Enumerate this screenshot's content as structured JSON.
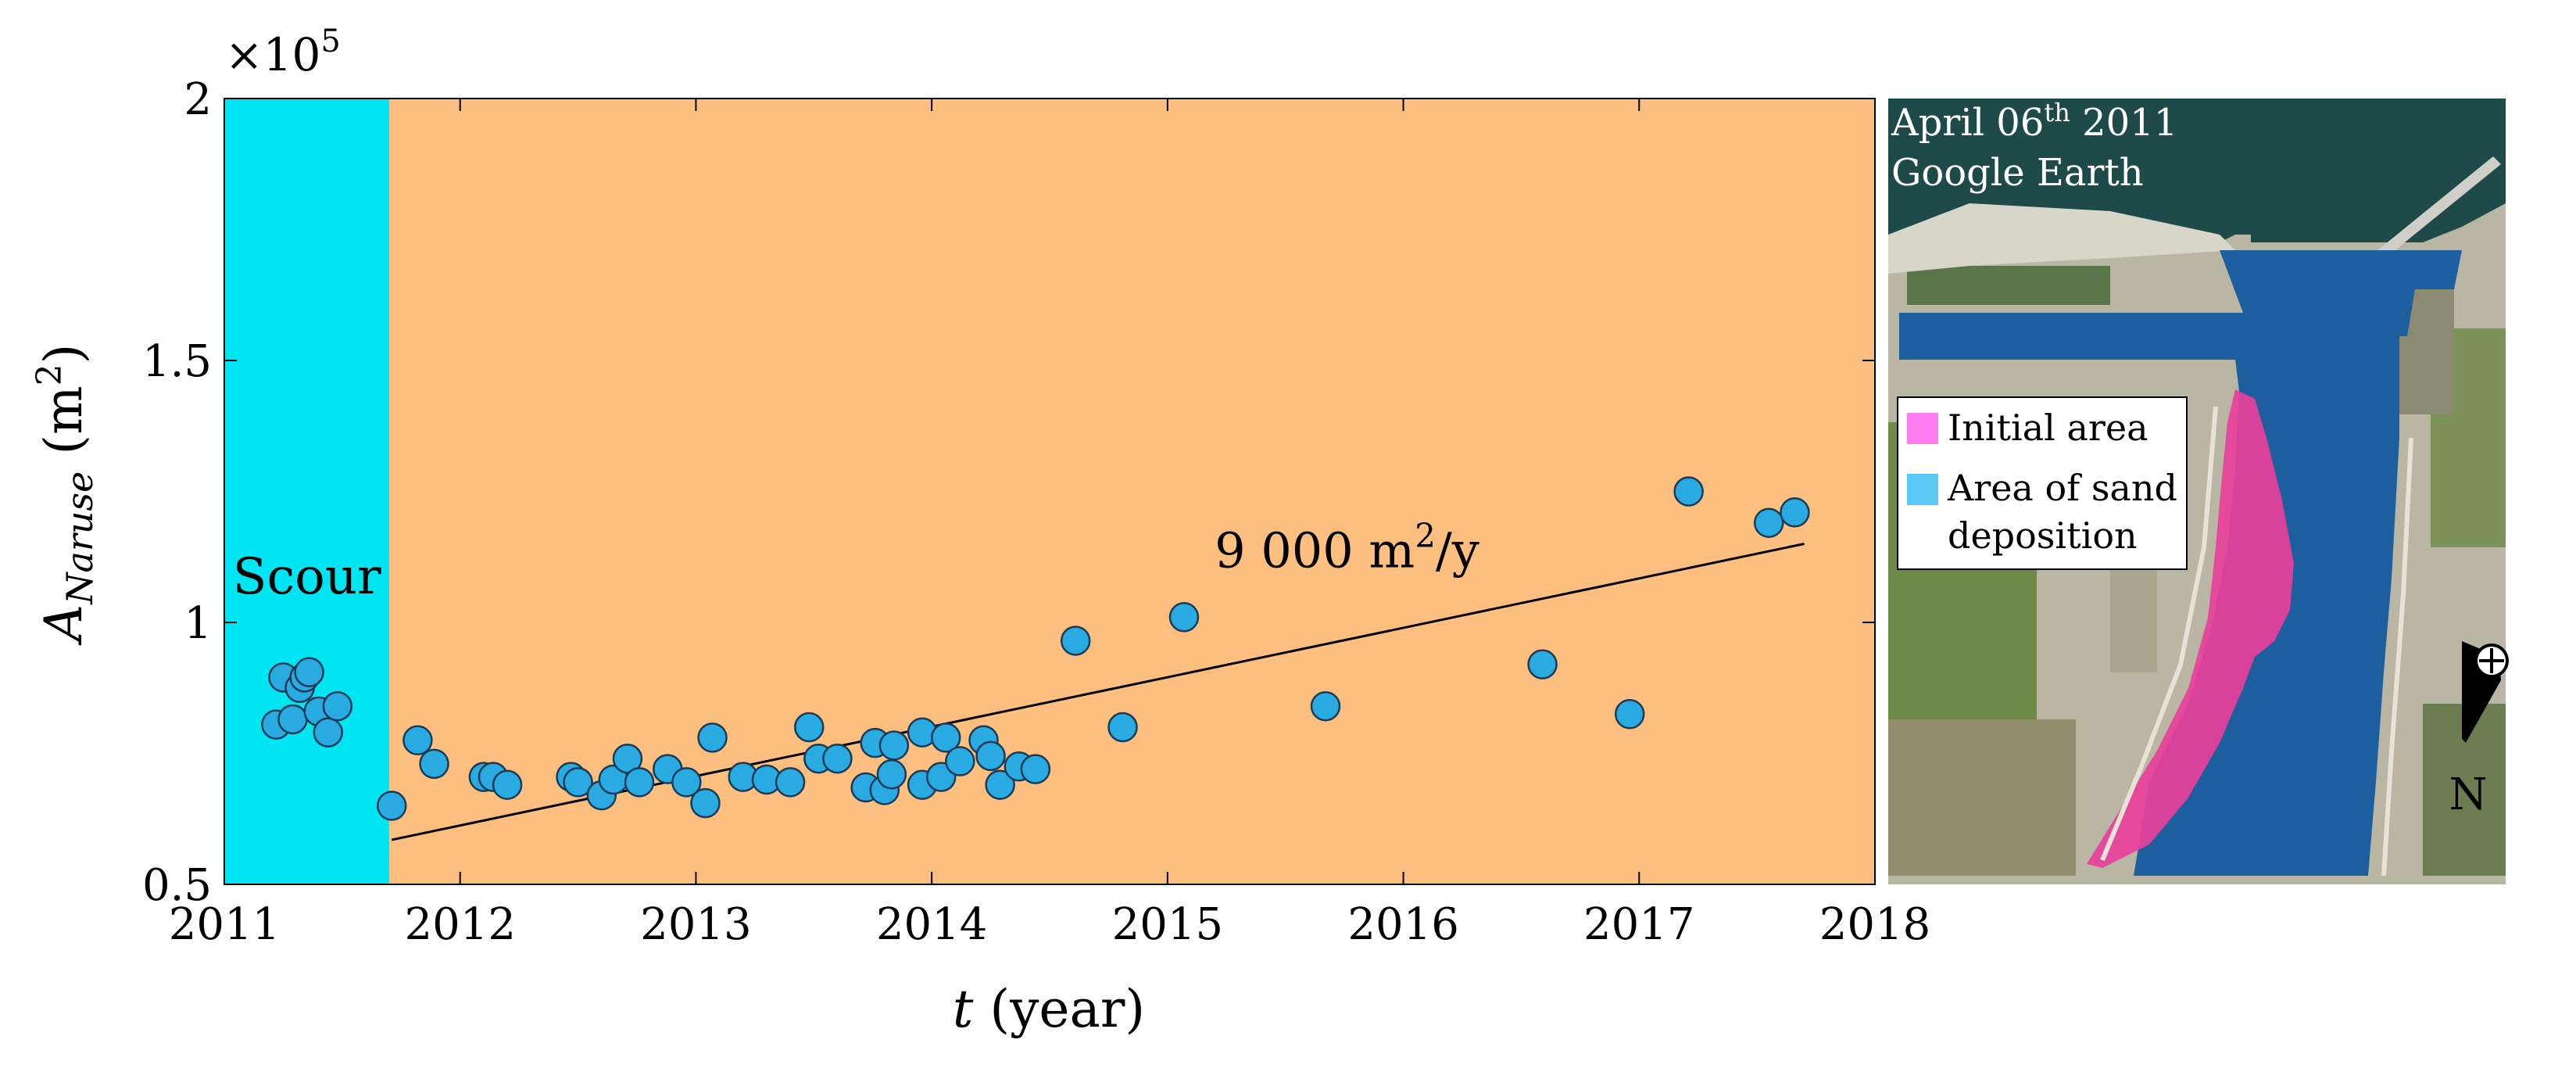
{
  "chart_data": {
    "type": "scatter",
    "title": "",
    "xlabel": "t",
    "xlabel_unit": "(year)",
    "ylabel": "A",
    "ylabel_sub": "Naruse",
    "ylabel_unit": "(m",
    "ylabel_unit_sup": "2",
    "ylabel_unit_close": ")",
    "y_multiplier": "×10",
    "y_multiplier_exp": "5",
    "xlim": [
      2011,
      2018
    ],
    "ylim": [
      0.5,
      2.0
    ],
    "x_ticks": [
      2011,
      2012,
      2013,
      2014,
      2015,
      2016,
      2017,
      2018
    ],
    "x_tick_labels": [
      "2011",
      "2012",
      "2013",
      "2014",
      "2015",
      "2016",
      "2017",
      "2018"
    ],
    "y_ticks": [
      0.5,
      1.0,
      1.5,
      2.0
    ],
    "y_tick_labels": [
      "0.5",
      "1",
      "1.5",
      "2"
    ],
    "regions": [
      {
        "name": "scour",
        "label": "Scour",
        "x_start": 2011.0,
        "x_end": 2011.7,
        "color": "#00E5F2"
      },
      {
        "name": "deposition",
        "label": "",
        "x_start": 2011.7,
        "x_end": 2018.0,
        "color": "#FDBF7F"
      }
    ],
    "series": [
      {
        "name": "observations",
        "marker_color": "#29ABE2",
        "points": [
          [
            2011.22,
            0.805
          ],
          [
            2011.25,
            0.895
          ],
          [
            2011.29,
            0.815
          ],
          [
            2011.32,
            0.875
          ],
          [
            2011.34,
            0.895
          ],
          [
            2011.36,
            0.905
          ],
          [
            2011.4,
            0.83
          ],
          [
            2011.44,
            0.79
          ],
          [
            2011.48,
            0.84
          ],
          [
            2011.71,
            0.65
          ],
          [
            2011.82,
            0.775
          ],
          [
            2011.89,
            0.73
          ],
          [
            2012.1,
            0.705
          ],
          [
            2012.14,
            0.705
          ],
          [
            2012.2,
            0.69
          ],
          [
            2012.47,
            0.705
          ],
          [
            2012.5,
            0.695
          ],
          [
            2012.6,
            0.67
          ],
          [
            2012.65,
            0.7
          ],
          [
            2012.71,
            0.74
          ],
          [
            2012.76,
            0.695
          ],
          [
            2012.88,
            0.72
          ],
          [
            2012.96,
            0.695
          ],
          [
            2013.04,
            0.655
          ],
          [
            2013.07,
            0.78
          ],
          [
            2013.2,
            0.705
          ],
          [
            2013.3,
            0.7
          ],
          [
            2013.4,
            0.695
          ],
          [
            2013.48,
            0.8
          ],
          [
            2013.52,
            0.74
          ],
          [
            2013.6,
            0.74
          ],
          [
            2013.72,
            0.685
          ],
          [
            2013.76,
            0.77
          ],
          [
            2013.8,
            0.68
          ],
          [
            2013.83,
            0.71
          ],
          [
            2013.84,
            0.765
          ],
          [
            2013.96,
            0.79
          ],
          [
            2013.96,
            0.69
          ],
          [
            2014.04,
            0.705
          ],
          [
            2014.06,
            0.78
          ],
          [
            2014.12,
            0.735
          ],
          [
            2014.22,
            0.775
          ],
          [
            2014.25,
            0.745
          ],
          [
            2014.29,
            0.69
          ],
          [
            2014.37,
            0.725
          ],
          [
            2014.44,
            0.72
          ],
          [
            2014.61,
            0.965
          ],
          [
            2014.81,
            0.8
          ],
          [
            2015.07,
            1.01
          ],
          [
            2015.67,
            0.84
          ],
          [
            2016.59,
            0.92
          ],
          [
            2016.96,
            0.825
          ],
          [
            2017.21,
            1.25
          ],
          [
            2017.55,
            1.19
          ],
          [
            2017.66,
            1.21
          ]
        ]
      }
    ],
    "trend_line": {
      "x": [
        2011.71,
        2017.7
      ],
      "y": [
        0.585,
        1.15
      ]
    },
    "annotations": [
      {
        "name": "trend-rate",
        "text_main": "9 000 m",
        "text_sup": "2",
        "text_tail": "/y",
        "x": 2015.2,
        "y": 1.105
      },
      {
        "name": "scour-label",
        "text": "Scour",
        "x": 2011.35,
        "y": 1.055
      }
    ]
  },
  "inset": {
    "caption_line1_prefix": "April 06",
    "caption_line1_sup": "th",
    "caption_line1_suffix": " 2011",
    "caption_line2": "Google Earth",
    "legend": [
      {
        "label": "Initial area",
        "color": "#FF7DF0"
      },
      {
        "label_line1": "Area of sand",
        "label_line2": "deposition",
        "color": "#5AC8F5"
      }
    ],
    "north_label": "N",
    "colors": {
      "sea": "#1E4A4A",
      "channel": "#1D5F9E",
      "initial_area": "#E8409B",
      "land": "#B9B6A4",
      "vegetation": "#6F8A48"
    }
  }
}
